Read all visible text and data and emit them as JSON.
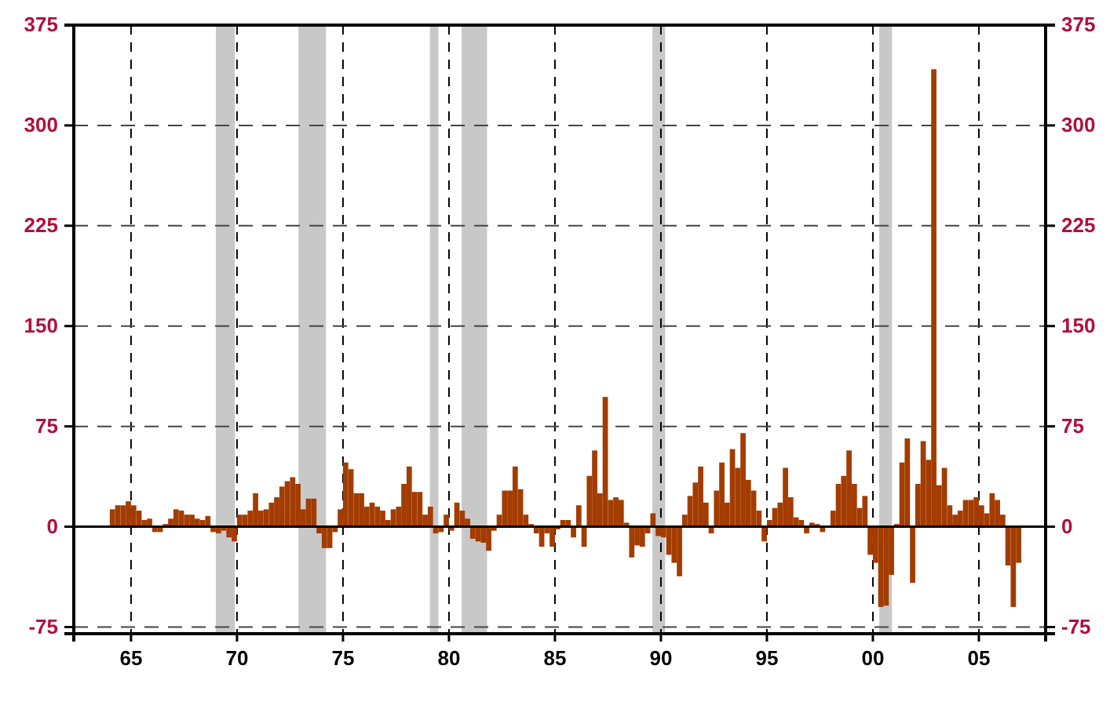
{
  "chart_data": {
    "type": "bar",
    "color": "#a33c00",
    "x": [
      1964.125,
      1964.375,
      1964.625,
      1964.875,
      1965.125,
      1965.375,
      1965.625,
      1965.875,
      1966.125,
      1966.375,
      1966.625,
      1966.875,
      1967.125,
      1967.375,
      1967.625,
      1967.875,
      1968.125,
      1968.375,
      1968.625,
      1968.875,
      1969.125,
      1969.375,
      1969.625,
      1969.875,
      1970.125,
      1970.375,
      1970.625,
      1970.875,
      1971.125,
      1971.375,
      1971.625,
      1971.875,
      1972.125,
      1972.375,
      1972.625,
      1972.875,
      1973.125,
      1973.375,
      1973.625,
      1973.875,
      1974.125,
      1974.375,
      1974.625,
      1974.875,
      1975.125,
      1975.375,
      1975.625,
      1975.875,
      1976.125,
      1976.375,
      1976.625,
      1976.875,
      1977.125,
      1977.375,
      1977.625,
      1977.875,
      1978.125,
      1978.375,
      1978.625,
      1978.875,
      1979.125,
      1979.375,
      1979.625,
      1979.875,
      1980.125,
      1980.375,
      1980.625,
      1980.875,
      1981.125,
      1981.375,
      1981.625,
      1981.875,
      1982.125,
      1982.375,
      1982.625,
      1982.875,
      1983.125,
      1983.375,
      1983.625,
      1983.875,
      1984.125,
      1984.375,
      1984.625,
      1984.875,
      1985.125,
      1985.375,
      1985.625,
      1985.875,
      1986.125,
      1986.375,
      1986.625,
      1986.875,
      1987.125,
      1987.375,
      1987.625,
      1987.875,
      1988.125,
      1988.375,
      1988.625,
      1988.875,
      1989.125,
      1989.375,
      1989.625,
      1989.875,
      1990.125,
      1990.375,
      1990.625,
      1990.875,
      1991.125,
      1991.375,
      1991.625,
      1991.875,
      1992.125,
      1992.375,
      1992.625,
      1992.875,
      1993.125,
      1993.375,
      1993.625,
      1993.875,
      1994.125,
      1994.375,
      1994.625,
      1994.875,
      1995.125,
      1995.375,
      1995.625,
      1995.875,
      1996.125,
      1996.375,
      1996.625,
      1996.875,
      1997.125,
      1997.375,
      1997.625,
      1997.875,
      1998.125,
      1998.375,
      1998.625,
      1998.875,
      1999.125,
      1999.375,
      1999.625,
      1999.875,
      2000.125,
      2000.375,
      2000.625,
      2000.875,
      2001.125,
      2001.375,
      2001.625,
      2001.875,
      2002.125,
      2002.375,
      2002.625,
      2002.875,
      2003.125,
      2003.375,
      2003.625,
      2003.875,
      2004.125,
      2004.375,
      2004.625,
      2004.875,
      2005.125,
      2005.375,
      2005.625,
      2005.875,
      2006.125,
      2006.375,
      2006.625,
      2006.875
    ],
    "values": [
      13,
      16,
      16,
      19,
      16,
      12,
      5,
      6,
      -4,
      -4,
      2,
      6,
      13,
      12,
      9,
      9,
      6,
      5,
      8,
      -4,
      -5,
      -3,
      -8,
      -11,
      9,
      9,
      12,
      25,
      12,
      13,
      18,
      22,
      30,
      34,
      37,
      32,
      13,
      21,
      21,
      -5,
      -16,
      -16,
      -4,
      13,
      48,
      43,
      25,
      25,
      15,
      18,
      15,
      12,
      5,
      13,
      15,
      32,
      45,
      26,
      26,
      9,
      15,
      -5,
      -4,
      9,
      -3,
      18,
      12,
      6,
      -9,
      -11,
      -12,
      -18,
      -3,
      9,
      27,
      27,
      45,
      28,
      9,
      2,
      -5,
      -15,
      -5,
      -15,
      -2,
      5,
      5,
      -8,
      16,
      -15,
      38,
      57,
      25,
      97,
      20,
      22,
      20,
      3,
      -23,
      -14,
      -15,
      -5,
      10,
      -7,
      -8,
      -21,
      -27,
      -37,
      9,
      23,
      33,
      45,
      18,
      -5,
      27,
      48,
      18,
      58,
      44,
      70,
      35,
      27,
      12,
      -11,
      5,
      14,
      18,
      44,
      22,
      7,
      5,
      -5,
      3,
      2,
      -4,
      0,
      12,
      32,
      38,
      57,
      32,
      14,
      23,
      -21,
      -27,
      -60,
      -59,
      -36,
      2,
      48,
      66,
      -42,
      32,
      64,
      50,
      342,
      31,
      44,
      16,
      9,
      12,
      20,
      20,
      22,
      16,
      10,
      25,
      20,
      9,
      -29,
      -60,
      -27
    ],
    "xlim": [
      1962.3,
      2008.15
    ],
    "xticks": [
      {
        "value": 1965,
        "label": "65"
      },
      {
        "value": 1970,
        "label": "70"
      },
      {
        "value": 1975,
        "label": "75"
      },
      {
        "value": 1980,
        "label": "80"
      },
      {
        "value": 1985,
        "label": "85"
      },
      {
        "value": 1990,
        "label": "90"
      },
      {
        "value": 1995,
        "label": "95"
      },
      {
        "value": 2000,
        "label": "00"
      },
      {
        "value": 2005,
        "label": "05"
      }
    ],
    "ylim": [
      -80,
      375
    ],
    "yticks": [
      -75,
      0,
      75,
      150,
      225,
      300,
      375
    ],
    "y2lim": [
      -80,
      375
    ],
    "y2ticks": [
      -75,
      0,
      75,
      150,
      225,
      300,
      375
    ],
    "grid": true,
    "bands": [
      {
        "axis": "x",
        "from": 1969.0,
        "to": 1969.9,
        "color": "#c8c8c8"
      },
      {
        "axis": "x",
        "from": 1972.9,
        "to": 1974.2,
        "color": "#c8c8c8"
      },
      {
        "axis": "x",
        "from": 1979.1,
        "to": 1979.5,
        "color": "#c8c8c8"
      },
      {
        "axis": "x",
        "from": 1980.6,
        "to": 1981.8,
        "color": "#c8c8c8"
      },
      {
        "axis": "x",
        "from": 1989.6,
        "to": 1990.2,
        "color": "#c8c8c8"
      },
      {
        "axis": "x",
        "from": 2000.3,
        "to": 2000.9,
        "color": "#c8c8c8"
      }
    ],
    "ref_lines": [
      {
        "axis": "y",
        "value": 0,
        "color": "#000000"
      }
    ]
  }
}
